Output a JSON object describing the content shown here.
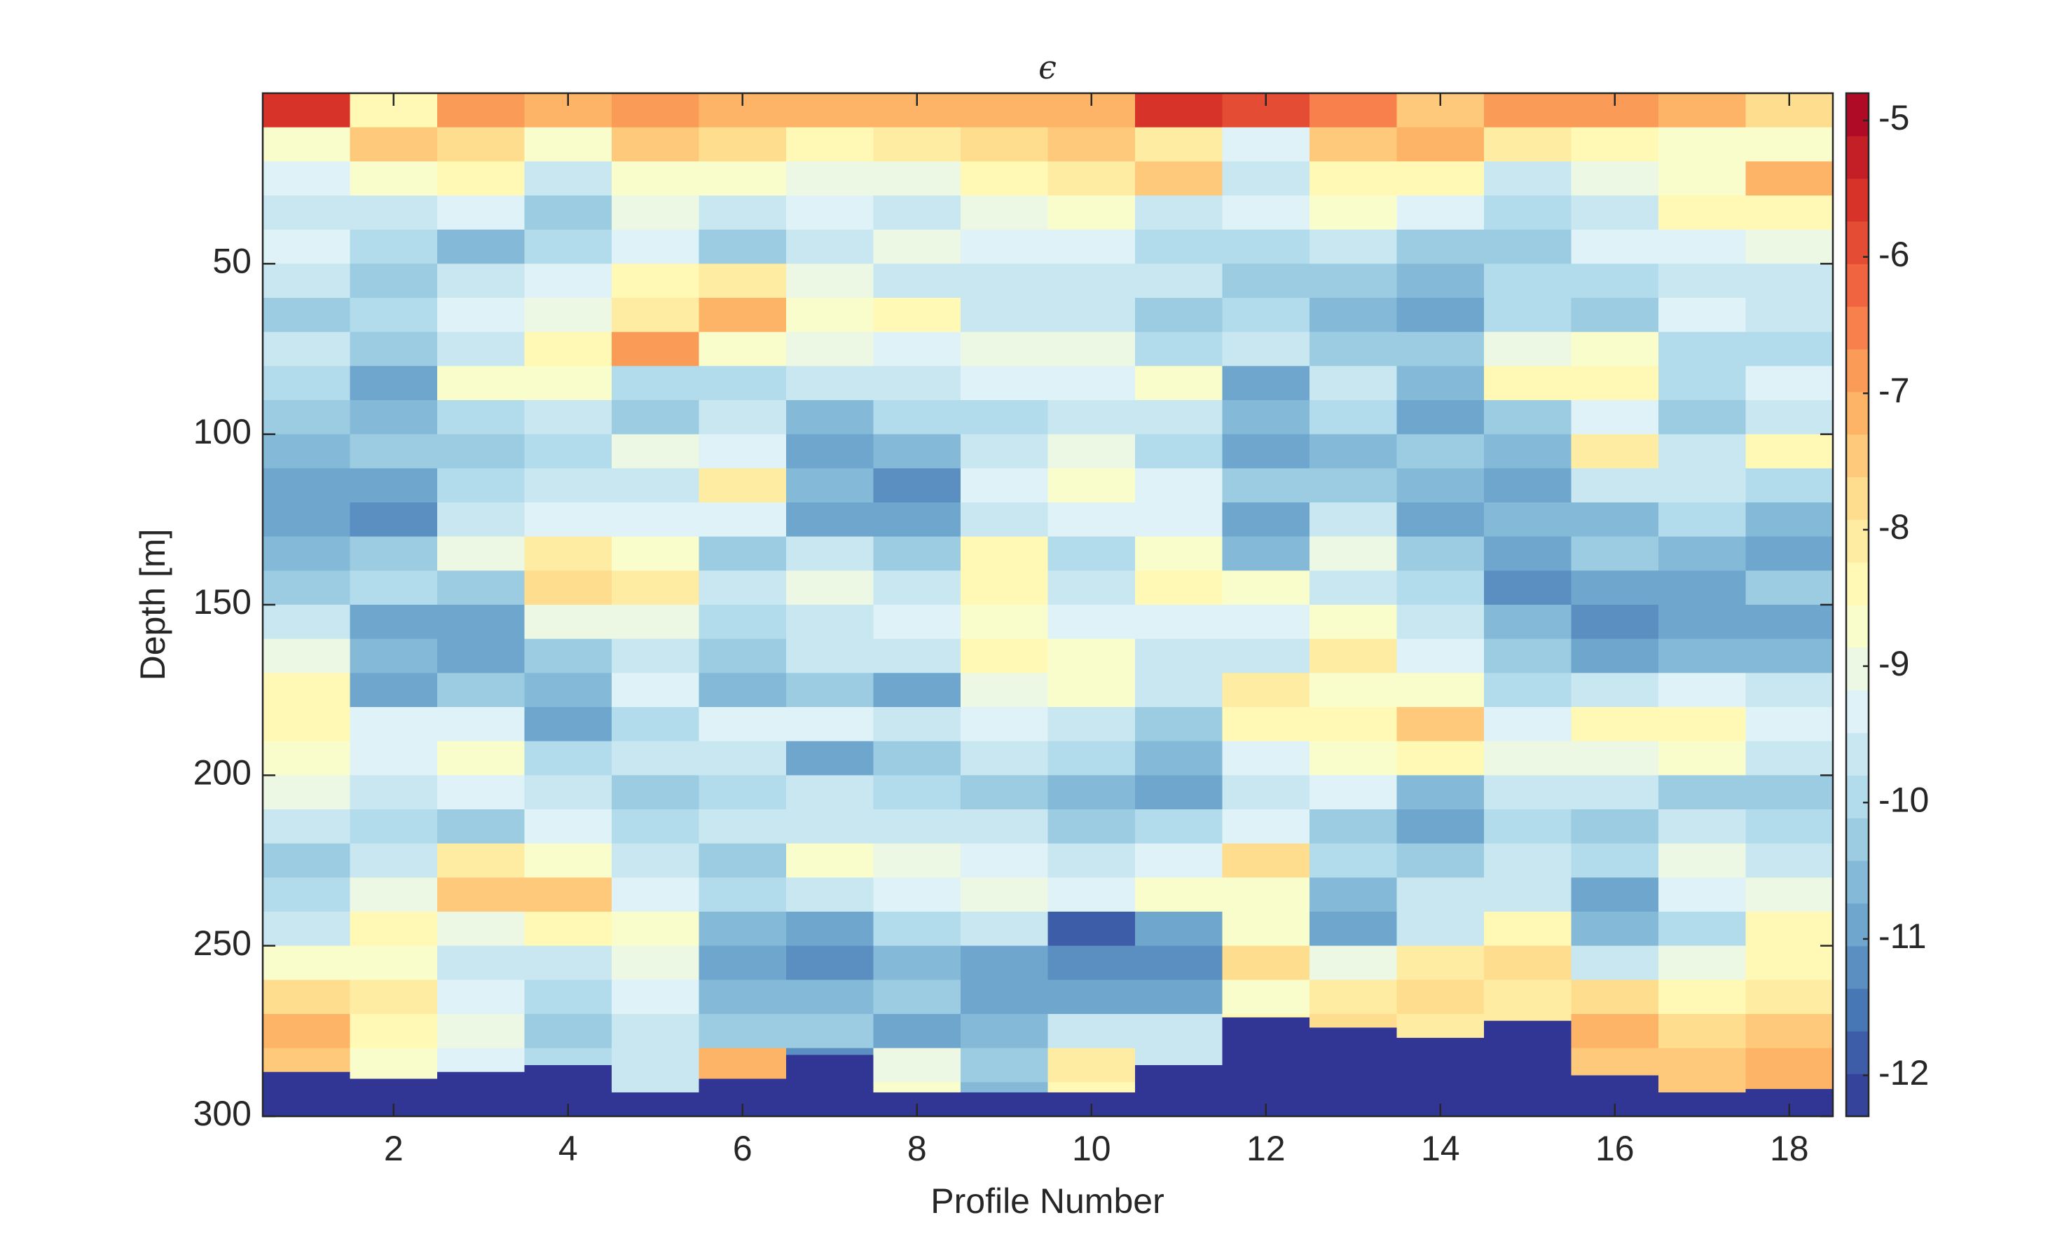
{
  "chart_data": {
    "type": "heatmap",
    "title": "ϵ",
    "xlabel": "Profile Number",
    "ylabel": "Depth [m]",
    "x": [
      1,
      2,
      3,
      4,
      5,
      6,
      7,
      8,
      9,
      10,
      11,
      12,
      13,
      14,
      15,
      16,
      17,
      18
    ],
    "y_edges": [
      0,
      10,
      20,
      30,
      40,
      50,
      60,
      70,
      80,
      90,
      100,
      110,
      120,
      130,
      140,
      150,
      160,
      170,
      180,
      190,
      200,
      210,
      220,
      230,
      240,
      250,
      260,
      270,
      280,
      290,
      300
    ],
    "xlim": [
      0.5,
      18.5
    ],
    "xticks": [
      2,
      4,
      6,
      8,
      10,
      12,
      14,
      16,
      18
    ],
    "ylim": [
      0,
      300
    ],
    "yticks": [
      50,
      100,
      150,
      200,
      250,
      300
    ],
    "y_reversed": true,
    "clim": [
      -12.3,
      -4.8
    ],
    "cticks": [
      -5,
      -6,
      -7,
      -8,
      -9,
      -10,
      -11,
      -12
    ],
    "levels": 24,
    "colormap": [
      "#313695",
      "#4575b4",
      "#74add1",
      "#abd9e9",
      "#e0f3f8",
      "#ffffbf",
      "#fee090",
      "#fdae61",
      "#f46d43",
      "#d73027",
      "#a50026"
    ],
    "bottom_depth": [
      287,
      289,
      287,
      285,
      293,
      289,
      282,
      293,
      293,
      293,
      285,
      271,
      274,
      277,
      272,
      288,
      293,
      292
    ],
    "z": [
      [
        -5.6,
        -8.6,
        -9.4,
        -9.8,
        -9.3,
        -9.7,
        -10.2,
        -9.6,
        -10.0,
        -10.3,
        -10.5,
        -10.8,
        -11.0,
        -10.7,
        -10.4,
        -9.6,
        -9.1,
        -8.4,
        -8.5,
        -8.8,
        -9.0,
        -9.8,
        -10.2,
        -9.9,
        -9.5,
        -8.6,
        -7.9,
        -7.3,
        -7.6,
        -8.0
      ],
      [
        -8.4,
        -7.6,
        -8.8,
        -9.6,
        -10.1,
        -10.3,
        -9.9,
        -10.4,
        -10.9,
        -10.5,
        -10.2,
        -10.8,
        -11.1,
        -10.4,
        -10.0,
        -10.9,
        -10.6,
        -11.0,
        -9.2,
        -9.4,
        -9.8,
        -10.1,
        -9.6,
        -8.9,
        -8.3,
        -8.6,
        -8.2,
        -8.5,
        -8.7,
        -8.8
      ],
      [
        -6.8,
        -7.8,
        -8.5,
        -9.4,
        -10.6,
        -9.8,
        -9.2,
        -9.6,
        -8.8,
        -9.9,
        -10.3,
        -10.0,
        -9.5,
        -9.1,
        -10.4,
        -10.8,
        -11.0,
        -10.2,
        -9.3,
        -8.7,
        -9.4,
        -10.2,
        -8.0,
        -7.4,
        -9.0,
        -9.6,
        -9.3,
        -9.0,
        -9.2,
        -9.4
      ],
      [
        -7.2,
        -8.7,
        -9.6,
        -10.4,
        -10.0,
        -9.3,
        -8.9,
        -8.3,
        -8.6,
        -9.7,
        -10.1,
        -9.8,
        -9.4,
        -8.2,
        -7.9,
        -8.9,
        -10.2,
        -10.5,
        -10.8,
        -10.0,
        -9.6,
        -9.3,
        -8.8,
        -7.5,
        -8.5,
        -9.5,
        -10.0,
        -10.3,
        -10.1,
        -10.2
      ],
      [
        -6.8,
        -7.6,
        -8.7,
        -9.1,
        -9.4,
        -8.4,
        -8.0,
        -6.9,
        -9.9,
        -10.2,
        -9.0,
        -9.5,
        -9.3,
        -8.8,
        -8.1,
        -9.0,
        -9.6,
        -9.4,
        -9.9,
        -9.7,
        -10.4,
        -10.0,
        -9.5,
        -9.2,
        -8.6,
        -8.9,
        -9.4,
        -9.6,
        -9.5,
        -9.5
      ],
      [
        -7.0,
        -7.9,
        -8.6,
        -9.7,
        -10.2,
        -8.2,
        -7.3,
        -8.8,
        -10.1,
        -9.8,
        -9.3,
        -8.2,
        -9.4,
        -10.3,
        -9.6,
        -10.0,
        -10.2,
        -10.5,
        -9.2,
        -9.5,
        -10.0,
        -9.5,
        -10.4,
        -10.0,
        -10.6,
        -10.9,
        -10.5,
        -10.2,
        -7.2,
        -7.0
      ],
      [
        -7.3,
        -8.4,
        -8.9,
        -9.2,
        -9.6,
        -9.0,
        -8.6,
        -8.9,
        -9.5,
        -10.7,
        -11.0,
        -10.6,
        -10.9,
        -9.7,
        -9.0,
        -9.5,
        -9.8,
        -10.3,
        -9.4,
        -10.8,
        -9.8,
        -9.6,
        -8.8,
        -9.5,
        -10.8,
        -11.2,
        -10.6,
        -10.2,
        -11.2,
        -11.3
      ],
      [
        -7.3,
        -8.2,
        -9.0,
        -9.5,
        -9.1,
        -9.6,
        -8.4,
        -9.2,
        -9.8,
        -10.0,
        -10.6,
        -11.1,
        -10.9,
        -10.2,
        -9.8,
        -9.3,
        -9.8,
        -10.9,
        -9.6,
        -10.4,
        -10.1,
        -9.7,
        -9.0,
        -9.4,
        -9.9,
        -10.6,
        -10.3,
        -10.9,
        -9.0,
        -8.8
      ],
      [
        -7.2,
        -7.9,
        -8.3,
        -9.0,
        -9.4,
        -9.8,
        -9.6,
        -9.0,
        -9.4,
        -10.0,
        -9.5,
        -9.2,
        -9.6,
        -8.5,
        -8.3,
        -8.7,
        -8.4,
        -8.9,
        -9.2,
        -9.6,
        -10.3,
        -9.8,
        -9.2,
        -9.0,
        -9.8,
        -10.8,
        -11.0,
        -10.6,
        -10.4,
        -10.5
      ],
      [
        -7.0,
        -7.6,
        -8.0,
        -8.6,
        -9.2,
        -9.8,
        -9.5,
        -9.0,
        -9.4,
        -9.8,
        -8.9,
        -8.6,
        -9.3,
        -10.0,
        -9.6,
        -9.2,
        -8.8,
        -8.6,
        -9.5,
        -10.0,
        -10.6,
        -10.2,
        -9.8,
        -9.4,
        -11.8,
        -11.3,
        -10.8,
        -9.6,
        -8.0,
        -8.5
      ],
      [
        -5.5,
        -8.2,
        -7.4,
        -9.6,
        -10.0,
        -9.8,
        -10.4,
        -10.1,
        -8.6,
        -9.5,
        -10.0,
        -9.4,
        -9.2,
        -8.8,
        -8.3,
        -9.4,
        -9.6,
        -9.8,
        -10.2,
        -10.6,
        -10.9,
        -9.9,
        -9.4,
        -8.6,
        -11.0,
        -11.2,
        -10.8,
        -9.5,
        -9.7,
        -9.8
      ],
      [
        -6.0,
        -9.2,
        -9.6,
        -9.4,
        -10.0,
        -10.3,
        -10.1,
        -9.6,
        -10.8,
        -10.5,
        -11.0,
        -10.4,
        -10.9,
        -10.6,
        -8.8,
        -9.2,
        -9.6,
        -8.2,
        -8.4,
        -9.3,
        -9.8,
        -9.4,
        -7.9,
        -8.6,
        -8.8,
        -7.9,
        -8.6,
        -8.5,
        -8.5,
        -8.5
      ],
      [
        -6.6,
        -7.6,
        -8.4,
        -8.8,
        -9.8,
        -10.4,
        -10.6,
        -10.2,
        -9.8,
        -10.0,
        -10.5,
        -10.2,
        -9.7,
        -8.9,
        -9.5,
        -8.6,
        -8.1,
        -8.8,
        -8.4,
        -8.6,
        -9.4,
        -10.3,
        -10.0,
        -10.6,
        -11.0,
        -9.0,
        -8.1,
        -7.8,
        -7.9,
        -7.9
      ],
      [
        -7.5,
        -7.0,
        -8.3,
        -9.2,
        -10.2,
        -10.5,
        -10.8,
        -10.4,
        -10.6,
        -10.9,
        -10.3,
        -10.7,
        -11.0,
        -10.4,
        -10.0,
        -9.6,
        -9.2,
        -8.6,
        -7.6,
        -8.3,
        -10.5,
        -10.9,
        -10.4,
        -9.8,
        -9.6,
        -8.2,
        -7.7,
        -8.0,
        -8.0,
        -8.0
      ],
      [
        -6.8,
        -8.0,
        -9.6,
        -10.0,
        -10.3,
        -10.1,
        -9.9,
        -9.0,
        -8.5,
        -10.3,
        -10.6,
        -10.9,
        -10.5,
        -10.9,
        -11.2,
        -10.7,
        -10.4,
        -10.0,
        -9.4,
        -9.0,
        -9.6,
        -10.0,
        -9.8,
        -9.5,
        -8.4,
        -7.8,
        -8.0,
        -8.0,
        -8.0,
        -8.0
      ],
      [
        -6.8,
        -8.4,
        -8.9,
        -9.6,
        -9.4,
        -9.9,
        -10.2,
        -8.6,
        -8.3,
        -9.2,
        -8.0,
        -9.8,
        -10.6,
        -10.4,
        -10.9,
        -11.1,
        -10.8,
        -9.8,
        -8.5,
        -9.0,
        -9.8,
        -10.3,
        -10.0,
        -10.8,
        -10.5,
        -9.6,
        -7.9,
        -7.2,
        -7.4,
        -7.5
      ],
      [
        -7.2,
        -8.6,
        -8.8,
        -8.3,
        -9.2,
        -9.6,
        -9.4,
        -9.9,
        -10.0,
        -10.3,
        -9.8,
        -9.5,
        -9.9,
        -10.5,
        -10.8,
        -11.0,
        -10.7,
        -9.4,
        -8.4,
        -8.7,
        -10.2,
        -9.6,
        -9.0,
        -9.4,
        -10.0,
        -8.9,
        -8.3,
        -7.8,
        -7.6,
        -7.6
      ],
      [
        -7.8,
        -8.6,
        -7.2,
        -8.4,
        -8.9,
        -9.8,
        -9.5,
        -10.0,
        -9.2,
        -9.6,
        -8.3,
        -10.0,
        -10.5,
        -10.8,
        -10.4,
        -10.9,
        -10.6,
        -9.7,
        -9.2,
        -9.6,
        -10.2,
        -10.1,
        -9.6,
        -9.0,
        -8.4,
        -8.5,
        -8.2,
        -7.4,
        -7.2,
        -7.3
      ]
    ]
  }
}
